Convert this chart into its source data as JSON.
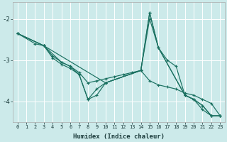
{
  "xlabel": "Humidex (Indice chaleur)",
  "bg_color": "#cceaea",
  "line_color": "#1a7060",
  "grid_color": "#ffffff",
  "xlim": [
    -0.5,
    23.5
  ],
  "ylim": [
    -4.5,
    -1.6
  ],
  "yticks": [
    -4,
    -3,
    -2
  ],
  "xticks": [
    0,
    1,
    2,
    3,
    4,
    5,
    6,
    7,
    8,
    9,
    10,
    11,
    12,
    13,
    14,
    15,
    16,
    17,
    18,
    19,
    20,
    21,
    22,
    23
  ],
  "lines": [
    {
      "x": [
        0,
        2,
        3,
        10,
        14,
        15,
        16,
        19,
        20,
        21,
        22,
        23
      ],
      "y": [
        -2.35,
        -2.6,
        -2.65,
        -3.55,
        -3.25,
        -2.0,
        -2.7,
        -3.85,
        -3.95,
        -4.1,
        -4.35,
        -4.35
      ]
    },
    {
      "x": [
        0,
        3,
        4,
        5,
        6,
        7,
        8,
        9,
        10,
        11,
        12,
        13,
        14,
        15,
        16,
        17,
        18,
        19,
        20,
        21,
        22,
        23
      ],
      "y": [
        -2.35,
        -2.65,
        -2.9,
        -3.05,
        -3.15,
        -3.3,
        -3.55,
        -3.5,
        -3.45,
        -3.4,
        -3.35,
        -3.3,
        -3.25,
        -3.5,
        -3.6,
        -3.65,
        -3.7,
        -3.8,
        -3.85,
        -3.95,
        -4.05,
        -4.35
      ]
    },
    {
      "x": [
        0,
        3,
        5,
        6,
        7,
        8,
        9,
        10,
        14,
        15,
        16,
        19,
        20,
        21,
        22,
        23
      ],
      "y": [
        -2.35,
        -2.65,
        -3.05,
        -3.15,
        -3.35,
        -3.95,
        -3.85,
        -3.55,
        -3.25,
        -1.85,
        -2.7,
        -3.85,
        -3.95,
        -4.1,
        -4.35,
        -4.35
      ]
    },
    {
      "x": [
        0,
        3,
        4,
        5,
        6,
        7,
        8,
        9,
        10,
        14,
        15,
        16,
        17,
        18,
        19,
        20,
        21,
        22,
        23
      ],
      "y": [
        -2.35,
        -2.65,
        -2.95,
        -3.1,
        -3.2,
        -3.35,
        -3.95,
        -3.7,
        -3.55,
        -3.25,
        -1.85,
        -2.7,
        -3.0,
        -3.15,
        -3.85,
        -3.95,
        -4.2,
        -4.35,
        -4.35
      ]
    }
  ]
}
